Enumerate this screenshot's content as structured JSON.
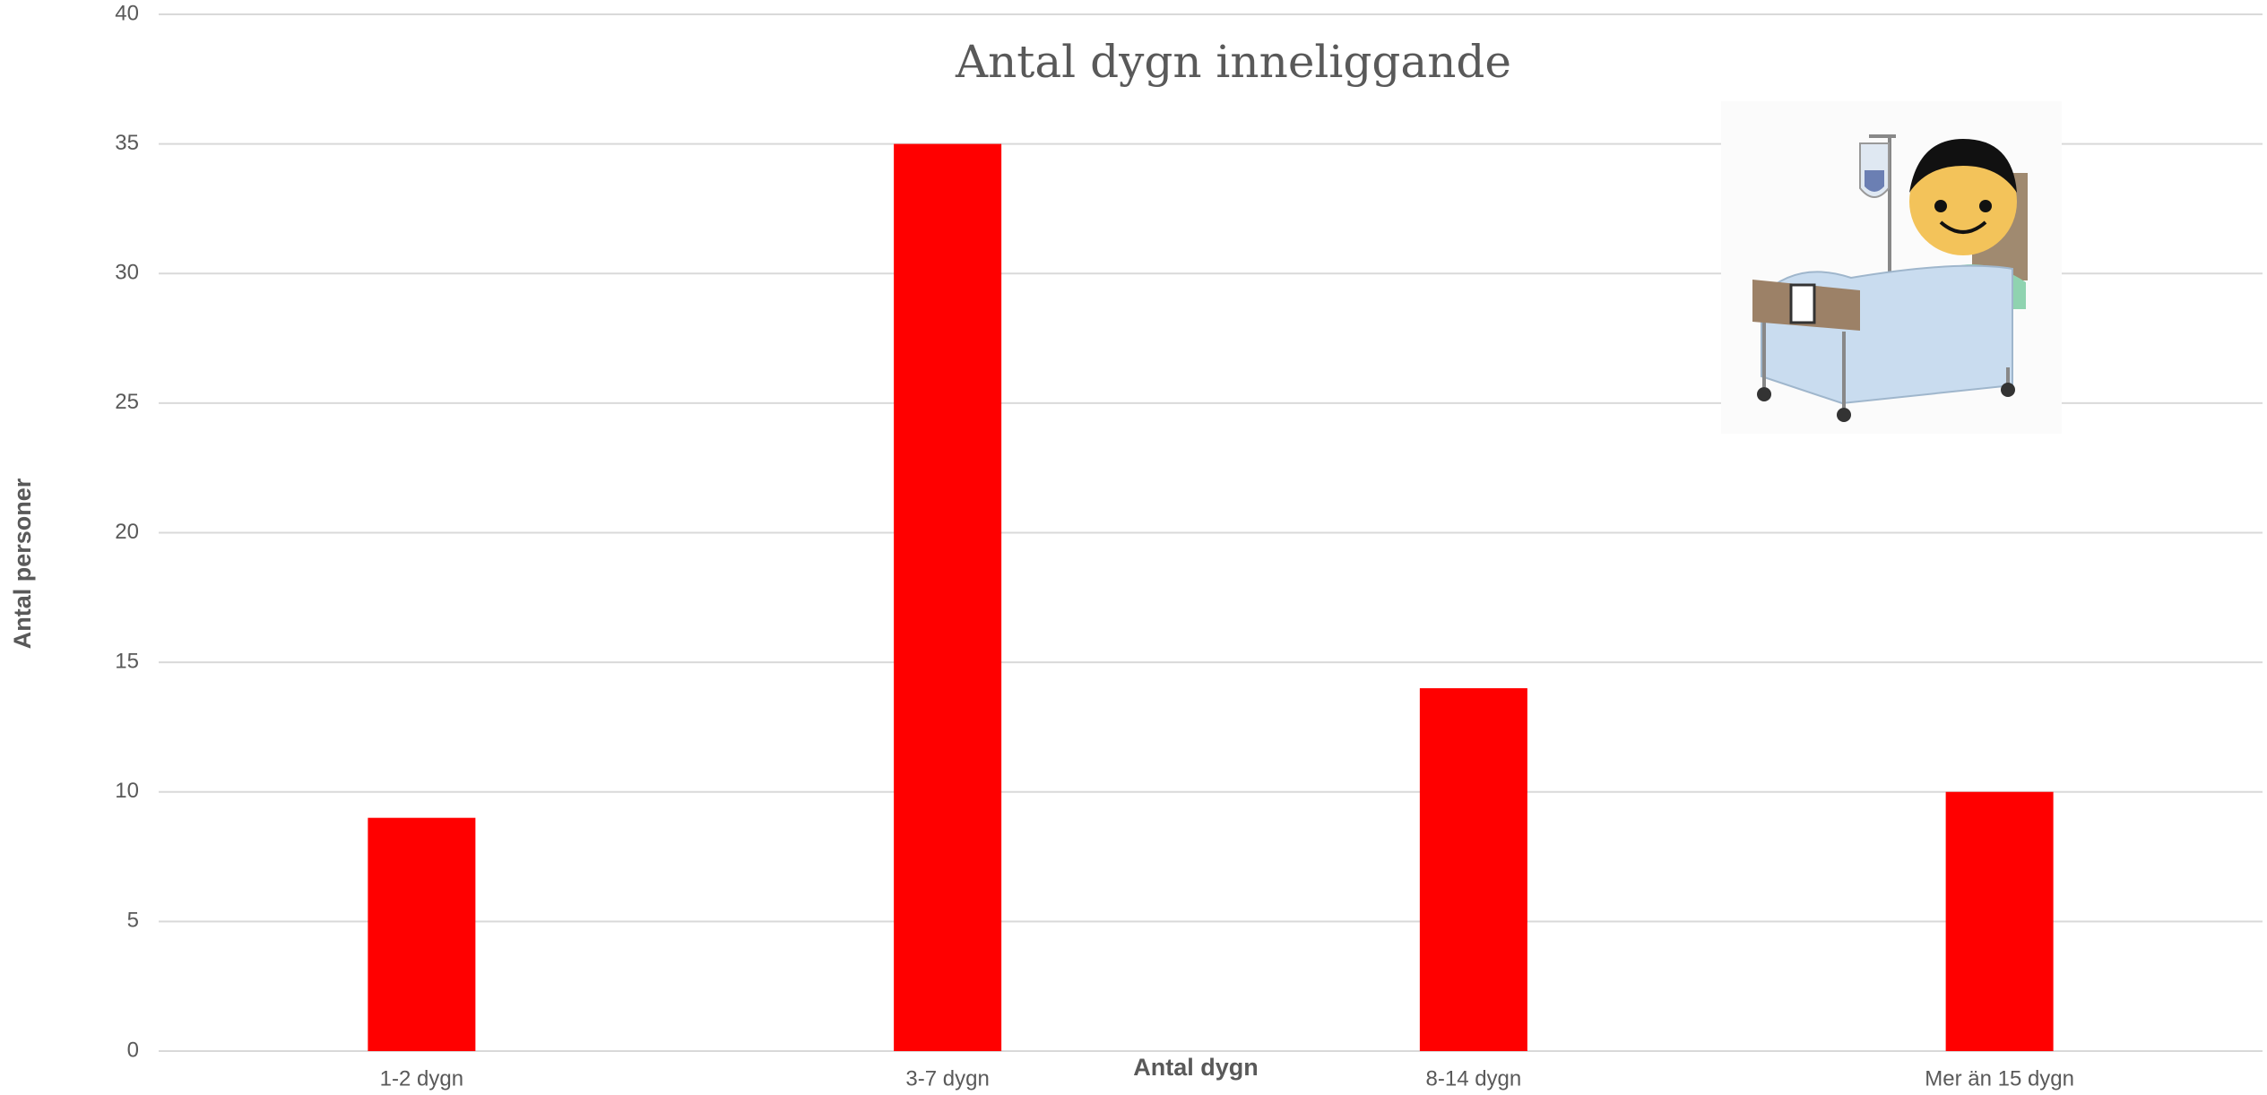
{
  "chart_data": {
    "type": "bar",
    "title": "Antal  dygn inneliggande",
    "x_label": "Antal dygn",
    "y_label": "Antal personer",
    "categories": [
      "1-2 dygn",
      "3-7 dygn",
      "8-14 dygn",
      "Mer än 15 dygn"
    ],
    "values": [
      9,
      35,
      14,
      10
    ],
    "color": "#ff0000",
    "ylim": [
      0,
      40
    ],
    "yticks": [
      0,
      5,
      10,
      15,
      20,
      25,
      30,
      35,
      40
    ],
    "grid": true
  }
}
